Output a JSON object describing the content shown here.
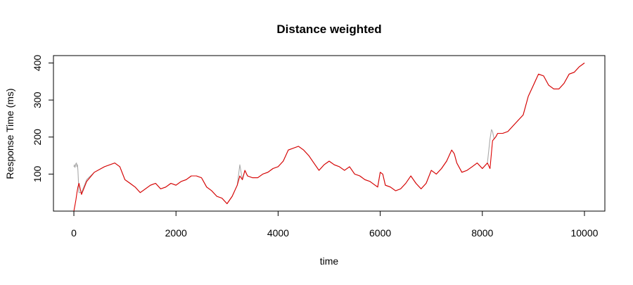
{
  "chart_data": {
    "type": "line",
    "title": "Distance weighted",
    "xlabel": "time",
    "ylabel": "Response Time (ms)",
    "xlim": [
      -400,
      10400
    ],
    "ylim": [
      0,
      420
    ],
    "x_ticks": [
      0,
      2000,
      4000,
      6000,
      8000,
      10000
    ],
    "y_ticks": [
      100,
      200,
      300,
      400
    ],
    "grid": false,
    "series": [
      {
        "color": "#a9a9a9",
        "x": [
          0,
          10,
          20,
          30,
          40,
          50,
          60,
          70,
          80,
          100,
          150,
          250,
          400,
          600,
          800,
          900,
          1000,
          1100,
          1200,
          1300,
          1400,
          1500,
          1600,
          1700,
          1800,
          1900,
          2000,
          2100,
          2200,
          2300,
          2400,
          2500,
          2600,
          2700,
          2800,
          2900,
          3000,
          3100,
          3200,
          3250,
          3300,
          3350,
          3400,
          3500,
          3600,
          3700,
          3800,
          3900,
          4000,
          4100,
          4200,
          4300,
          4400,
          4500,
          4600,
          4700,
          4800,
          4900,
          5000,
          5100,
          5200,
          5300,
          5400,
          5500,
          5600,
          5700,
          5800,
          5900,
          5950,
          6000,
          6050,
          6100,
          6200,
          6300,
          6400,
          6500,
          6600,
          6700,
          6800,
          6900,
          7000,
          7100,
          7200,
          7300,
          7400,
          7450,
          7500,
          7600,
          7700,
          7800,
          7900,
          8000,
          8100,
          8150,
          8180,
          8200,
          8230,
          8260,
          8300,
          8400,
          8500,
          8600,
          8700,
          8800,
          8900,
          9000,
          9100,
          9200,
          9300,
          9400,
          9500,
          9600,
          9700,
          9800,
          9900,
          10000
        ],
        "y": [
          120,
          125,
          118,
          122,
          128,
          130,
          120,
          125,
          110,
          50,
          50,
          85,
          105,
          120,
          130,
          120,
          85,
          75,
          65,
          50,
          60,
          70,
          75,
          60,
          65,
          75,
          70,
          80,
          85,
          95,
          95,
          90,
          65,
          55,
          40,
          35,
          20,
          40,
          70,
          125,
          85,
          110,
          95,
          90,
          90,
          100,
          105,
          115,
          120,
          135,
          165,
          170,
          175,
          165,
          150,
          130,
          110,
          125,
          135,
          125,
          120,
          110,
          120,
          100,
          95,
          85,
          80,
          70,
          65,
          105,
          100,
          70,
          65,
          55,
          60,
          75,
          95,
          75,
          60,
          75,
          110,
          100,
          115,
          135,
          165,
          155,
          130,
          105,
          110,
          120,
          130,
          115,
          130,
          195,
          220,
          215,
          195,
          200,
          210,
          210,
          215,
          230,
          245,
          260,
          310,
          340,
          370,
          365,
          340,
          330,
          330,
          345,
          370,
          375,
          390,
          400
        ]
      },
      {
        "color": "#dd0000",
        "x": [
          0,
          20,
          40,
          60,
          80,
          100,
          150,
          250,
          400,
          600,
          800,
          900,
          1000,
          1100,
          1200,
          1300,
          1400,
          1500,
          1600,
          1700,
          1800,
          1900,
          2000,
          2100,
          2200,
          2300,
          2400,
          2500,
          2600,
          2700,
          2800,
          2900,
          3000,
          3100,
          3200,
          3250,
          3300,
          3350,
          3400,
          3500,
          3600,
          3700,
          3800,
          3900,
          4000,
          4100,
          4200,
          4300,
          4400,
          4500,
          4600,
          4700,
          4800,
          4900,
          5000,
          5100,
          5200,
          5300,
          5400,
          5500,
          5600,
          5700,
          5800,
          5900,
          5950,
          6000,
          6050,
          6100,
          6200,
          6300,
          6400,
          6500,
          6600,
          6700,
          6800,
          6900,
          7000,
          7100,
          7200,
          7300,
          7400,
          7450,
          7500,
          7600,
          7700,
          7800,
          7900,
          8000,
          8100,
          8150,
          8200,
          8230,
          8260,
          8300,
          8400,
          8500,
          8600,
          8700,
          8800,
          8900,
          9000,
          9100,
          9200,
          9300,
          9400,
          9500,
          9600,
          9700,
          9800,
          9900,
          10000
        ],
        "y": [
          0,
          15,
          30,
          50,
          65,
          75,
          45,
          80,
          105,
          120,
          130,
          120,
          85,
          75,
          65,
          50,
          60,
          70,
          75,
          60,
          65,
          75,
          70,
          80,
          85,
          95,
          95,
          90,
          65,
          55,
          40,
          35,
          20,
          40,
          70,
          95,
          85,
          110,
          95,
          90,
          90,
          100,
          105,
          115,
          120,
          135,
          165,
          170,
          175,
          165,
          150,
          130,
          110,
          125,
          135,
          125,
          120,
          110,
          120,
          100,
          95,
          85,
          80,
          70,
          65,
          105,
          100,
          70,
          65,
          55,
          60,
          75,
          95,
          75,
          60,
          75,
          110,
          100,
          115,
          135,
          165,
          155,
          130,
          105,
          110,
          120,
          130,
          115,
          130,
          115,
          190,
          195,
          200,
          210,
          210,
          215,
          230,
          245,
          260,
          310,
          340,
          370,
          365,
          340,
          330,
          330,
          345,
          370,
          375,
          390,
          400
        ]
      }
    ]
  }
}
